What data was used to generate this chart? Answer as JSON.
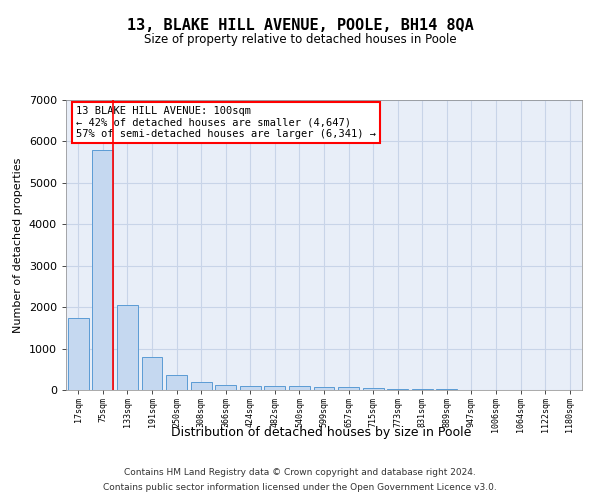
{
  "title": "13, BLAKE HILL AVENUE, POOLE, BH14 8QA",
  "subtitle": "Size of property relative to detached houses in Poole",
  "xlabel": "Distribution of detached houses by size in Poole",
  "ylabel": "Number of detached properties",
  "bin_labels": [
    "17sqm",
    "75sqm",
    "133sqm",
    "191sqm",
    "250sqm",
    "308sqm",
    "366sqm",
    "424sqm",
    "482sqm",
    "540sqm",
    "599sqm",
    "657sqm",
    "715sqm",
    "773sqm",
    "831sqm",
    "889sqm",
    "947sqm",
    "1006sqm",
    "1064sqm",
    "1122sqm",
    "1180sqm"
  ],
  "bar_values": [
    1750,
    5800,
    2050,
    800,
    370,
    200,
    120,
    100,
    100,
    90,
    75,
    65,
    50,
    30,
    20,
    15,
    10,
    8,
    6,
    5,
    4
  ],
  "bar_color": "#c5d8f0",
  "bar_edge_color": "#5b9bd5",
  "grid_color": "#c8d4e8",
  "background_color": "#e8eef8",
  "annotation_text": "13 BLAKE HILL AVENUE: 100sqm\n← 42% of detached houses are smaller (4,647)\n57% of semi-detached houses are larger (6,341) →",
  "annotation_box_color": "white",
  "annotation_box_edge_color": "red",
  "ylim": [
    0,
    7000
  ],
  "footnote1": "Contains HM Land Registry data © Crown copyright and database right 2024.",
  "footnote2": "Contains public sector information licensed under the Open Government Licence v3.0."
}
